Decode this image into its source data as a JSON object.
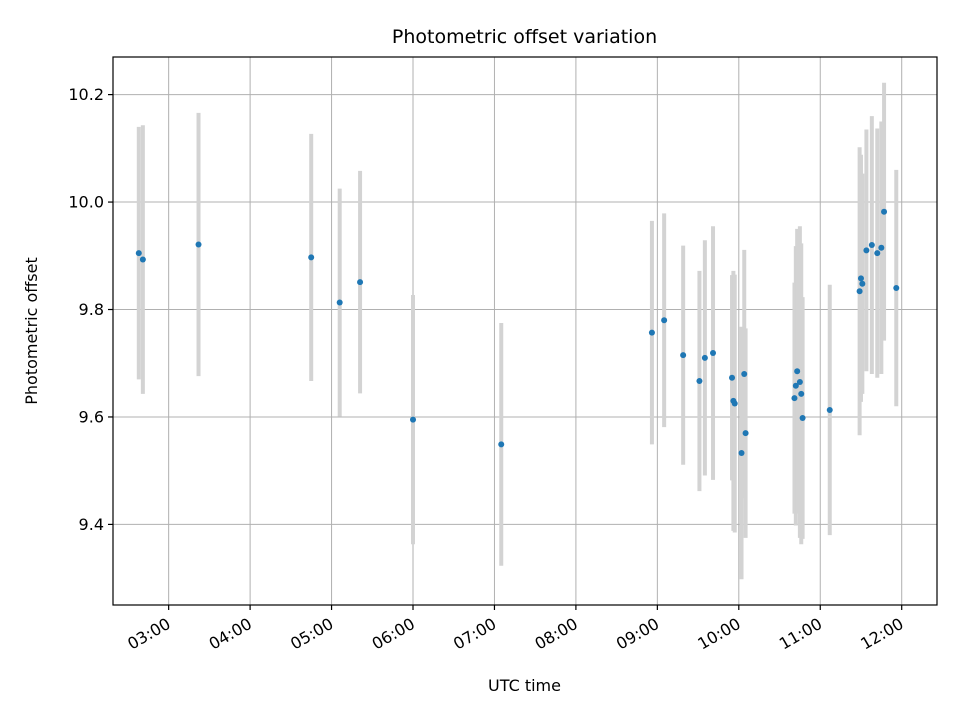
{
  "chart_data": {
    "type": "scatter",
    "title": "Photometric offset variation",
    "xlabel": "UTC time",
    "ylabel": "Photometric offset",
    "x_ticks": [
      "03:00",
      "04:00",
      "05:00",
      "06:00",
      "07:00",
      "08:00",
      "09:00",
      "10:00",
      "11:00",
      "12:00"
    ],
    "y_ticks": [
      "9.4",
      "9.6",
      "9.8",
      "10.0",
      "10.2"
    ],
    "xlim": [
      "02:19",
      "12:26"
    ],
    "ylim": [
      9.25,
      10.27
    ],
    "grid": true,
    "colors": {
      "point": "#1f77b4",
      "errorbar": "#d3d3d3",
      "grid": "#b0b0b0"
    },
    "points": [
      {
        "x": "02:38",
        "y": 9.905,
        "err": 0.235
      },
      {
        "x": "02:41",
        "y": 9.893,
        "err": 0.25
      },
      {
        "x": "03:22",
        "y": 9.921,
        "err": 0.245
      },
      {
        "x": "04:45",
        "y": 9.897,
        "err": 0.23
      },
      {
        "x": "05:06",
        "y": 9.813,
        "err": 0.212
      },
      {
        "x": "05:21",
        "y": 9.851,
        "err": 0.207
      },
      {
        "x": "06:00",
        "y": 9.595,
        "err": 0.232
      },
      {
        "x": "07:05",
        "y": 9.549,
        "err": 0.226
      },
      {
        "x": "08:56",
        "y": 9.757,
        "err": 0.208
      },
      {
        "x": "09:05",
        "y": 9.78,
        "err": 0.199
      },
      {
        "x": "09:19",
        "y": 9.715,
        "err": 0.204
      },
      {
        "x": "09:31",
        "y": 9.667,
        "err": 0.205
      },
      {
        "x": "09:35",
        "y": 9.71,
        "err": 0.219
      },
      {
        "x": "09:41",
        "y": 9.719,
        "err": 0.236
      },
      {
        "x": "09:55",
        "y": 9.673,
        "err": 0.191
      },
      {
        "x": "09:56",
        "y": 9.63,
        "err": 0.242
      },
      {
        "x": "09:57",
        "y": 9.625,
        "err": 0.24
      },
      {
        "x": "10:02",
        "y": 9.533,
        "err": 0.235
      },
      {
        "x": "10:04",
        "y": 9.68,
        "err": 0.231
      },
      {
        "x": "10:05",
        "y": 9.57,
        "err": 0.195
      },
      {
        "x": "10:41",
        "y": 9.635,
        "err": 0.215
      },
      {
        "x": "10:42",
        "y": 9.658,
        "err": 0.26
      },
      {
        "x": "10:43",
        "y": 9.685,
        "err": 0.265
      },
      {
        "x": "10:45",
        "y": 9.665,
        "err": 0.29
      },
      {
        "x": "10:46",
        "y": 9.643,
        "err": 0.28
      },
      {
        "x": "10:47",
        "y": 9.598,
        "err": 0.225
      },
      {
        "x": "11:07",
        "y": 9.613,
        "err": 0.233
      },
      {
        "x": "11:29",
        "y": 9.834,
        "err": 0.268
      },
      {
        "x": "11:30",
        "y": 9.858,
        "err": 0.23
      },
      {
        "x": "11:31",
        "y": 9.848,
        "err": 0.205
      },
      {
        "x": "11:34",
        "y": 9.91,
        "err": 0.225
      },
      {
        "x": "11:38",
        "y": 9.92,
        "err": 0.24
      },
      {
        "x": "11:42",
        "y": 9.905,
        "err": 0.232
      },
      {
        "x": "11:45",
        "y": 9.915,
        "err": 0.235
      },
      {
        "x": "11:47",
        "y": 9.982,
        "err": 0.24
      },
      {
        "x": "11:56",
        "y": 9.84,
        "err": 0.22
      }
    ]
  }
}
